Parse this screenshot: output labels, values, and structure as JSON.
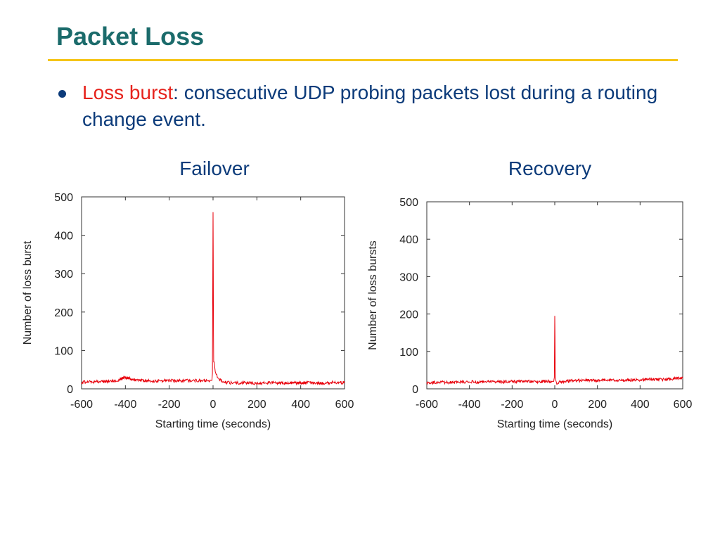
{
  "slide": {
    "title": "Packet Loss",
    "bullet": {
      "term": "Loss burst",
      "text": ": consecutive UDP probing packets lost during a routing change event."
    },
    "colors": {
      "title": "#1b6b6b",
      "rule": "#f5c518",
      "body": "#0c3b7a",
      "highlight": "#e6231d",
      "series": "#e8000b"
    }
  },
  "chart_data": [
    {
      "type": "line",
      "caption": "Failover",
      "xlabel": "Starting time (seconds)",
      "ylabel": "Number of loss burst",
      "xlim": [
        -600,
        600
      ],
      "ylim": [
        0,
        500
      ],
      "xticks": [
        -600,
        -400,
        -200,
        0,
        200,
        400,
        600
      ],
      "yticks": [
        0,
        100,
        200,
        300,
        400,
        500
      ],
      "grid": false,
      "series": [
        {
          "x": [
            -600,
            -550,
            -500,
            -450,
            -400,
            -350,
            -300,
            -250,
            -200,
            -150,
            -100,
            -50,
            -20,
            -10,
            -5,
            -3,
            -2,
            0,
            1,
            2,
            3,
            5,
            10,
            20,
            50,
            100,
            150,
            200,
            250,
            300,
            350,
            400,
            450,
            500,
            550,
            600
          ],
          "values": [
            17,
            19,
            18,
            20,
            30,
            22,
            21,
            20,
            22,
            21,
            22,
            21,
            22,
            22,
            22,
            40,
            190,
            460,
            340,
            150,
            70,
            70,
            45,
            28,
            17,
            15,
            16,
            14,
            16,
            15,
            16,
            15,
            16,
            15,
            16,
            16
          ]
        }
      ]
    },
    {
      "type": "line",
      "caption": "Recovery",
      "xlabel": "Starting time (seconds)",
      "ylabel": "Number of loss bursts",
      "xlim": [
        -600,
        600
      ],
      "ylim": [
        0,
        500
      ],
      "xticks": [
        -600,
        -400,
        -200,
        0,
        200,
        400,
        600
      ],
      "yticks": [
        0,
        100,
        200,
        300,
        400,
        500
      ],
      "grid": false,
      "series": [
        {
          "x": [
            -600,
            -550,
            -500,
            -450,
            -400,
            -350,
            -300,
            -250,
            -200,
            -150,
            -100,
            -50,
            -20,
            -10,
            -5,
            -2,
            0,
            1,
            2,
            4,
            10,
            20,
            50,
            100,
            150,
            200,
            250,
            300,
            350,
            400,
            450,
            500,
            550,
            600
          ],
          "values": [
            15,
            18,
            17,
            18,
            19,
            18,
            19,
            18,
            20,
            19,
            19,
            20,
            20,
            20,
            20,
            30,
            195,
            140,
            55,
            25,
            12,
            18,
            20,
            22,
            23,
            22,
            23,
            22,
            24,
            24,
            26,
            25,
            27,
            28
          ]
        }
      ]
    }
  ]
}
